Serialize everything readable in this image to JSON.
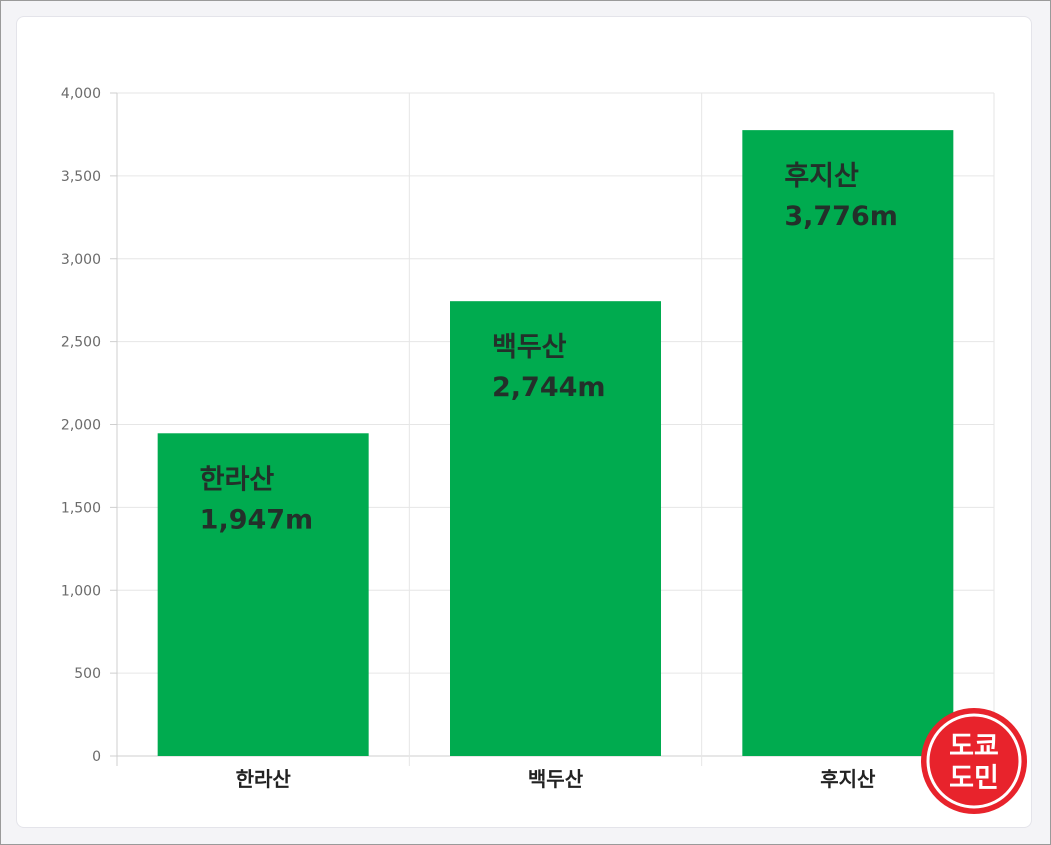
{
  "chart_data": {
    "type": "bar",
    "categories": [
      "한라산",
      "백두산",
      "후지산"
    ],
    "values": [
      1947,
      2744,
      3776
    ],
    "data_labels": [
      {
        "name": "한라산",
        "value": "1,947m"
      },
      {
        "name": "백두산",
        "value": "2,744m"
      },
      {
        "name": "후지산",
        "value": "3,776m"
      }
    ],
    "y_ticks": [
      "0",
      "500",
      "1,000",
      "1,500",
      "2,000",
      "2,500",
      "3,000",
      "3,500",
      "4,000"
    ],
    "ylim": [
      0,
      4000
    ],
    "title": "",
    "xlabel": "",
    "ylabel": "",
    "grid": true,
    "legend": "none",
    "bar_color": "#00ab4f"
  },
  "stamp": {
    "lines": [
      "도쿄",
      "도민"
    ],
    "color": "#e8232c"
  }
}
